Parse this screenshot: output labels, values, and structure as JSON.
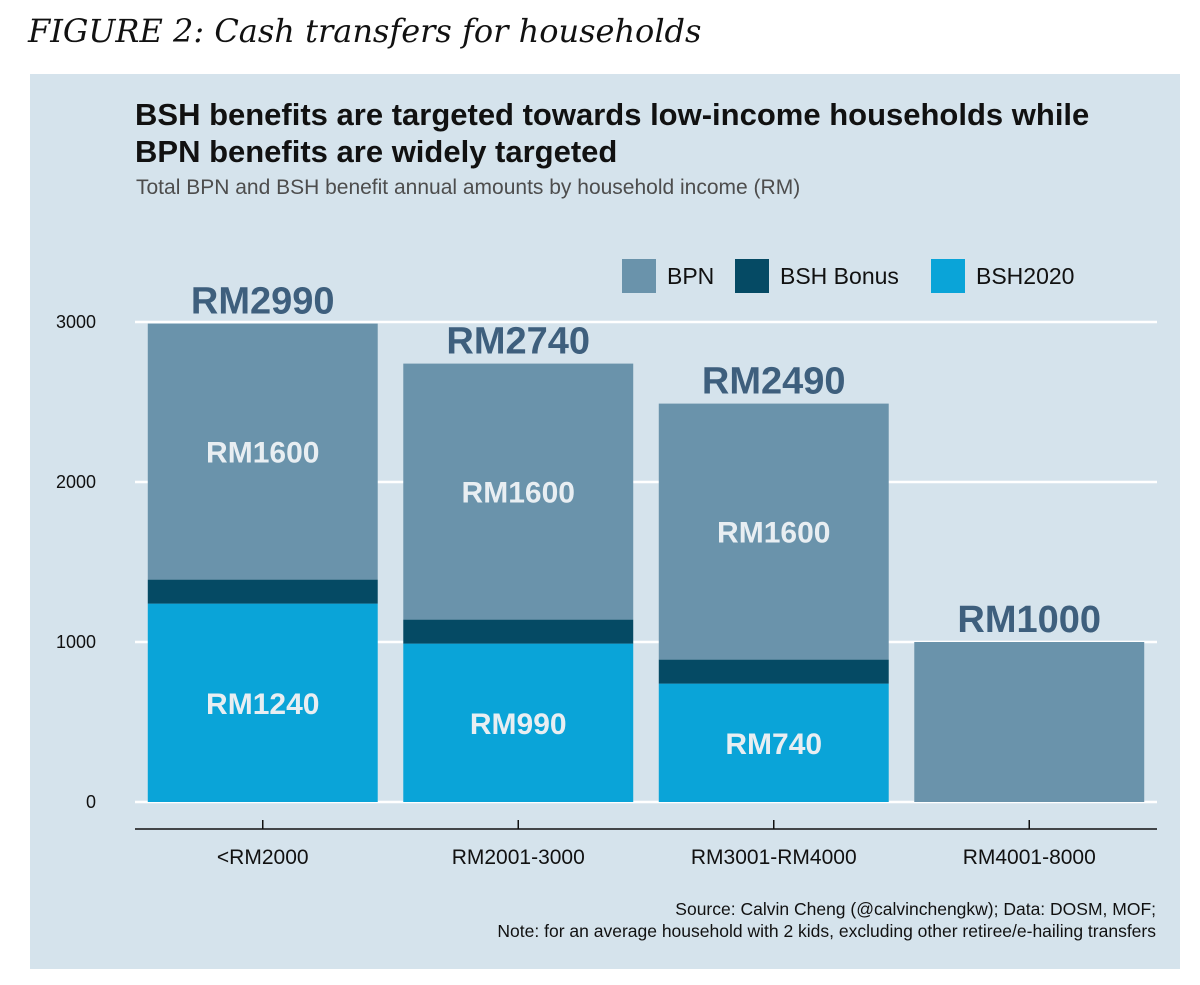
{
  "figure_caption": "FIGURE 2: Cash transfers for households",
  "colors": {
    "panel_bg": "#d5e3ec",
    "BPN": "#6a93ab",
    "BSH Bonus": "#054a64",
    "BSH2020": "#0aa4d8",
    "total_label": "#3e5f7d",
    "segment_label": "#e8eef2"
  },
  "chart_data": {
    "type": "bar",
    "stacked": true,
    "title": "BSH benefits are targeted towards low-income households while BPN benefits are widely targeted",
    "subtitle": "Total BPN and BSH benefit annual amounts by household income (RM)",
    "xlabel": "",
    "ylabel": "",
    "categories": [
      "<RM2000",
      "RM2001-3000",
      "RM3001-RM4000",
      "RM4001-8000"
    ],
    "series": [
      {
        "name": "BSH2020",
        "values": [
          1240,
          990,
          740,
          0
        ],
        "labels": [
          "RM1240",
          "RM990",
          "RM740",
          ""
        ]
      },
      {
        "name": "BSH Bonus",
        "values": [
          150,
          150,
          150,
          0
        ],
        "labels": [
          "",
          "",
          "",
          ""
        ]
      },
      {
        "name": "BPN",
        "values": [
          1600,
          1600,
          1600,
          1000
        ],
        "labels": [
          "RM1600",
          "RM1600",
          "RM1600",
          ""
        ]
      }
    ],
    "totals": [
      "RM2990",
      "RM2740",
      "RM2490",
      "RM1000"
    ],
    "legend": [
      "BPN",
      "BSH Bonus",
      "BSH2020"
    ],
    "legend_position": "top-right",
    "ylim": [
      0,
      3000
    ],
    "yticks": [
      0,
      1000,
      2000,
      3000
    ],
    "grid": true
  },
  "source_lines": [
    "Source: Calvin Cheng (@calvinchengkw); Data: DOSM, MOF;",
    "Note: for an average household with 2 kids, excluding other retiree/e-hailing transfers"
  ]
}
